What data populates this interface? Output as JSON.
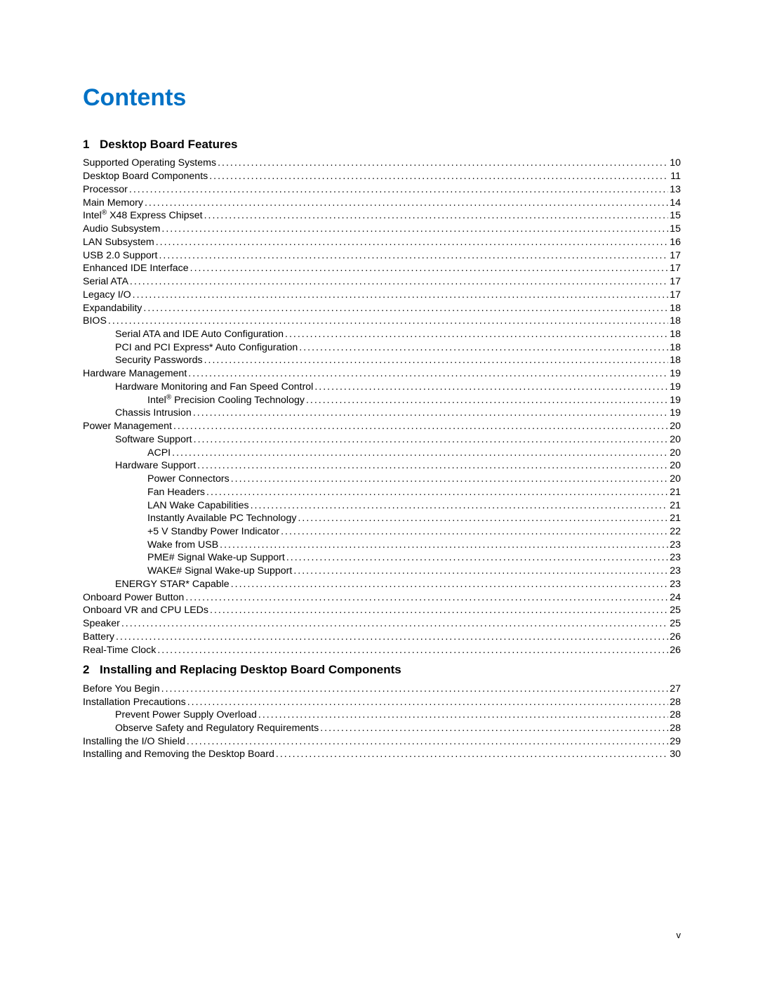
{
  "title": "Contents",
  "colors": {
    "title_color": "#0071c5",
    "text_color": "#000000",
    "background_color": "#ffffff"
  },
  "typography": {
    "title_fontsize": 34,
    "heading_fontsize": 17,
    "body_fontsize": 14,
    "font_family": "Verdana, sans-serif"
  },
  "page_number": "v",
  "sections": [
    {
      "num": "1",
      "title": "Desktop Board Features",
      "entries": [
        {
          "label": "Supported Operating Systems",
          "page": "10",
          "indent": 1
        },
        {
          "label": "Desktop Board Components",
          "page": "11",
          "indent": 1
        },
        {
          "label": "Processor",
          "page": "13",
          "indent": 1
        },
        {
          "label": "Main Memory",
          "page": "14",
          "indent": 1
        },
        {
          "label": "Intel® X48 Express Chipset",
          "page": "15",
          "indent": 1,
          "has_reg": true
        },
        {
          "label": "Audio Subsystem",
          "page": "15",
          "indent": 1
        },
        {
          "label": "LAN Subsystem",
          "page": "16",
          "indent": 1
        },
        {
          "label": "USB 2.0 Support",
          "page": "17",
          "indent": 1
        },
        {
          "label": "Enhanced IDE Interface",
          "page": "17",
          "indent": 1
        },
        {
          "label": "Serial ATA",
          "page": "17",
          "indent": 1
        },
        {
          "label": "Legacy I/O",
          "page": "17",
          "indent": 1
        },
        {
          "label": "Expandability",
          "page": "18",
          "indent": 1
        },
        {
          "label": "BIOS",
          "page": "18",
          "indent": 1
        },
        {
          "label": "Serial ATA and IDE Auto Configuration",
          "page": "18",
          "indent": 2
        },
        {
          "label": "PCI and PCI Express* Auto Configuration",
          "page": "18",
          "indent": 2
        },
        {
          "label": "Security Passwords",
          "page": "18",
          "indent": 2
        },
        {
          "label": "Hardware Management",
          "page": "19",
          "indent": 1
        },
        {
          "label": "Hardware Monitoring and Fan Speed Control",
          "page": "19",
          "indent": 2
        },
        {
          "label": "Intel® Precision Cooling Technology",
          "page": "19",
          "indent": 3,
          "has_reg": true
        },
        {
          "label": "Chassis Intrusion",
          "page": "19",
          "indent": 2
        },
        {
          "label": "Power Management",
          "page": "20",
          "indent": 1
        },
        {
          "label": "Software Support",
          "page": "20",
          "indent": 2
        },
        {
          "label": "ACPI",
          "page": "20",
          "indent": 3
        },
        {
          "label": "Hardware Support",
          "page": "20",
          "indent": 2
        },
        {
          "label": "Power Connectors",
          "page": "20",
          "indent": 3
        },
        {
          "label": "Fan Headers",
          "page": "21",
          "indent": 3
        },
        {
          "label": "LAN Wake Capabilities",
          "page": "21",
          "indent": 3
        },
        {
          "label": "Instantly Available PC Technology",
          "page": "21",
          "indent": 3
        },
        {
          "label": "+5 V Standby Power Indicator",
          "page": "22",
          "indent": 3
        },
        {
          "label": "Wake from USB",
          "page": "23",
          "indent": 3
        },
        {
          "label": "PME# Signal Wake-up Support",
          "page": "23",
          "indent": 3
        },
        {
          "label": "WAKE# Signal Wake-up Support",
          "page": "23",
          "indent": 3
        },
        {
          "label": "ENERGY STAR* Capable",
          "page": "23",
          "indent": 2
        },
        {
          "label": "Onboard Power Button",
          "page": "24",
          "indent": 1
        },
        {
          "label": "Onboard VR and CPU LEDs",
          "page": "25",
          "indent": 1
        },
        {
          "label": "Speaker",
          "page": "25",
          "indent": 1
        },
        {
          "label": "Battery",
          "page": "26",
          "indent": 1
        },
        {
          "label": "Real-Time Clock",
          "page": "26",
          "indent": 1
        }
      ]
    },
    {
      "num": "2",
      "title": "Installing and Replacing Desktop Board Components",
      "entries": [
        {
          "label": "Before You Begin",
          "page": "27",
          "indent": 1
        },
        {
          "label": "Installation Precautions",
          "page": "28",
          "indent": 1
        },
        {
          "label": "Prevent Power Supply Overload",
          "page": "28",
          "indent": 2
        },
        {
          "label": "Observe Safety and Regulatory Requirements",
          "page": "28",
          "indent": 2
        },
        {
          "label": "Installing the I/O Shield",
          "page": "29",
          "indent": 1
        },
        {
          "label": "Installing and Removing the Desktop Board",
          "page": "30",
          "indent": 1
        }
      ]
    }
  ]
}
